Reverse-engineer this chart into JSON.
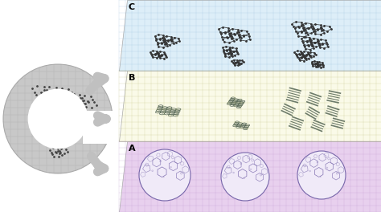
{
  "fig_width": 4.74,
  "fig_height": 2.64,
  "dpi": 100,
  "bg_color": "#ffffff",
  "panel_c_color": "#ddeef8",
  "panel_b_color": "#fafae8",
  "panel_a_color": "#e8d0ee",
  "panel_c_label": "C",
  "panel_b_label": "B",
  "panel_a_label": "A",
  "label_fontsize": 8,
  "label_fontweight": "bold",
  "circle_color": "#c8c8c8",
  "circle_inner_color": "#e0e0e0",
  "arrow_color": "#bbbbbb",
  "mol_color_c": "#333333",
  "mol_color_b": "#556655",
  "mol_color_a": "#6655aa"
}
